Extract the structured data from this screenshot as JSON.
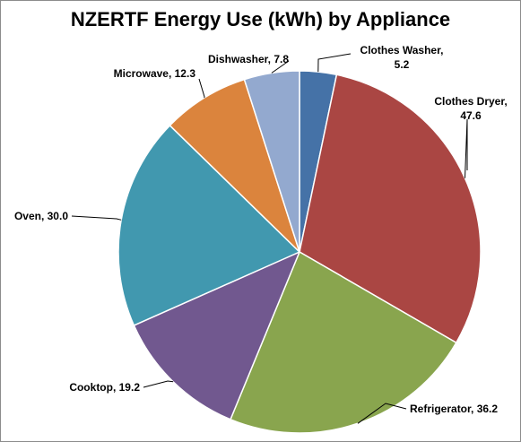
{
  "chart_data": {
    "type": "pie",
    "title": "NZERTF Energy Use (kWh) by Appliance",
    "slices": [
      {
        "name": "Clothes Washer",
        "value": 5.2,
        "label_lines": [
          "Clothes Washer,",
          "5.2"
        ],
        "color": "#4572A7"
      },
      {
        "name": "Clothes Dryer",
        "value": 47.6,
        "label_lines": [
          "Clothes Dryer,",
          "47.6"
        ],
        "color": "#AA4643"
      },
      {
        "name": "Refrigerator",
        "value": 36.2,
        "label_lines": [
          "Refrigerator, 36.2"
        ],
        "color": "#89A54E"
      },
      {
        "name": "Cooktop",
        "value": 19.2,
        "label_lines": [
          "Cooktop, 19.2"
        ],
        "color": "#71588F"
      },
      {
        "name": "Oven",
        "value": 30.0,
        "label_lines": [
          "Oven, 30.0"
        ],
        "color": "#4198AF"
      },
      {
        "name": "Microwave",
        "value": 12.3,
        "label_lines": [
          "Microwave, 12.3"
        ],
        "color": "#DB843D"
      },
      {
        "name": "Dishwasher",
        "value": 7.8,
        "label_lines": [
          "Dishwasher, 7.8"
        ],
        "color": "#93A9CF"
      }
    ],
    "start_angle_deg": 0,
    "direction": "clockwise",
    "legend": "none",
    "data_labels": "outside-with-leader-lines"
  }
}
